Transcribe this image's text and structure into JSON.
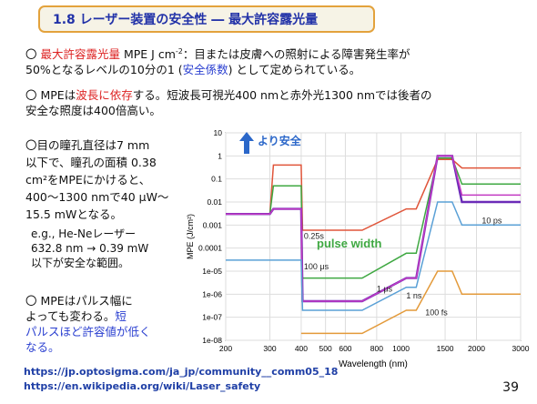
{
  "slide": {
    "title": "1.8 レーザー装置の安全性 ― 最大許容露光量",
    "p1": {
      "bullet": "〇",
      "red": "最大許容露光量",
      "rest1": " MPE J cm",
      "sup": "-2",
      "rest2": "：目または皮膚への照射による障害発生率が",
      "line2a": "50%となるレベルの10分の1 (",
      "line2blue": "安全係数",
      "line2b": ") として定められている。"
    },
    "p2": {
      "a": "〇 MPEは",
      "red": "波長に依存",
      "b": "する。短波長可視光400 nmと赤外光1300 nmでは後者の",
      "line2": "安全な照度は400倍高い。"
    },
    "p3": {
      "lines": [
        "〇目の瞳孔直径は7 mm",
        "以下で、瞳孔の面積 0.38",
        "cm²をMPEにかけると、",
        "400〜1300 nmで40 μW〜",
        "15.5 mWとなる。"
      ],
      "eg_lines": [
        "e.g., He-Neレーザー",
        "632.8 nm → 0.39 mW",
        "以下が安全な範囲。"
      ]
    },
    "p4": {
      "line1": "〇 MPEはパルス幅に",
      "line2a": "よっても変わる。",
      "line2blue": "短",
      "line3": "パルスほど許容値が低く",
      "line4": "なる。"
    },
    "links": [
      "https://jp.optosigma.com/ja_jp/community__comm05_18",
      "https://en.wikipedia.org/wiki/Laser_safety"
    ],
    "page_number": "39"
  },
  "chart_data": {
    "type": "line",
    "xlabel": "Wavelength (nm)",
    "ylabel": "MPE (J/cm²)",
    "x_ticks": [
      "200",
      "300",
      "400",
      "500",
      "600",
      "800",
      "1000",
      "1500",
      "2000",
      "3000"
    ],
    "y_ticks": [
      "1e-08",
      "1e-07",
      "1e-06",
      "1e-05",
      "0.0001",
      "0.001",
      "0.01",
      "0.1",
      "1",
      "10"
    ],
    "xlim": [
      200,
      3000
    ],
    "ylim": [
      1e-08,
      10
    ],
    "x_scale": "log",
    "y_scale": "log",
    "annotations": {
      "safer": "より安全",
      "pulse_width": "pulse width"
    },
    "series": [
      {
        "name": "0.25s",
        "color": "#e0553a",
        "points": [
          [
            200,
            0.003
          ],
          [
            300,
            0.003
          ],
          [
            310,
            0.4
          ],
          [
            400,
            0.4
          ],
          [
            405,
            0.0006
          ],
          [
            700,
            0.0006
          ],
          [
            1050,
            0.005
          ],
          [
            1150,
            0.005
          ],
          [
            1400,
            0.7
          ],
          [
            1600,
            0.7
          ],
          [
            1750,
            0.3
          ],
          [
            3000,
            0.3
          ]
        ]
      },
      {
        "name": "100 μs",
        "color": "#3fa842",
        "points": [
          [
            200,
            0.003
          ],
          [
            300,
            0.003
          ],
          [
            310,
            0.05
          ],
          [
            400,
            0.05
          ],
          [
            405,
            5e-06
          ],
          [
            700,
            5e-06
          ],
          [
            1050,
            6e-05
          ],
          [
            1150,
            6e-05
          ],
          [
            1400,
            0.8
          ],
          [
            1600,
            0.8
          ],
          [
            1750,
            0.06
          ],
          [
            3000,
            0.06
          ]
        ]
      },
      {
        "name": "1 μs",
        "color": "#6b2bb8",
        "points": [
          [
            200,
            0.003
          ],
          [
            300,
            0.003
          ],
          [
            310,
            0.005
          ],
          [
            400,
            0.005
          ],
          [
            405,
            5e-07
          ],
          [
            700,
            5e-07
          ],
          [
            1050,
            5e-06
          ],
          [
            1150,
            5e-06
          ],
          [
            1400,
            1
          ],
          [
            1600,
            1
          ],
          [
            1750,
            0.01
          ],
          [
            3000,
            0.01
          ]
        ]
      },
      {
        "name": "1 ns",
        "color": "#c23ac2",
        "points": [
          [
            200,
            0.003
          ],
          [
            300,
            0.003
          ],
          [
            310,
            0.005
          ],
          [
            400,
            0.005
          ],
          [
            405,
            5e-07
          ],
          [
            700,
            5e-07
          ],
          [
            1050,
            5e-06
          ],
          [
            1150,
            5e-06
          ],
          [
            1400,
            1
          ],
          [
            1600,
            1
          ],
          [
            1750,
            0.02
          ],
          [
            3000,
            0.02
          ]
        ]
      },
      {
        "name": "10 ps",
        "color": "#5aa0d6",
        "points": [
          [
            200,
            3e-05
          ],
          [
            300,
            3e-05
          ],
          [
            310,
            3e-05
          ],
          [
            400,
            3e-05
          ],
          [
            405,
            2e-07
          ],
          [
            700,
            2e-07
          ],
          [
            1050,
            2e-06
          ],
          [
            1150,
            2e-06
          ],
          [
            1400,
            0.01
          ],
          [
            1600,
            0.01
          ],
          [
            1750,
            0.001
          ],
          [
            3000,
            0.001
          ]
        ]
      },
      {
        "name": "100 fs",
        "color": "#e39a3a",
        "points": [
          [
            400,
            2e-08
          ],
          [
            700,
            2e-08
          ],
          [
            1050,
            2e-07
          ],
          [
            1150,
            2e-07
          ],
          [
            1400,
            1e-05
          ],
          [
            1600,
            1e-05
          ],
          [
            1750,
            1e-06
          ],
          [
            3000,
            1e-06
          ]
        ]
      }
    ]
  }
}
